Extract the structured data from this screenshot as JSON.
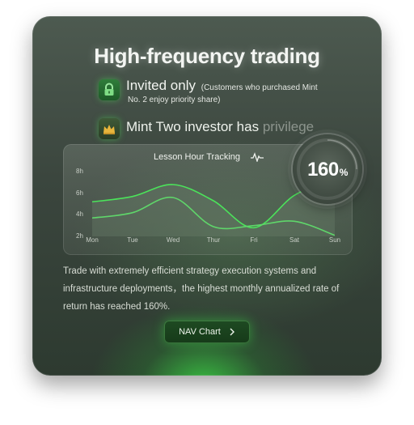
{
  "title": "High-frequency trading",
  "invite": {
    "main": "Invited only",
    "note_line1": "(Customers who purchased Mint",
    "note_line2": "No. 2 enjoy priority share)"
  },
  "privilege": {
    "text_main": "Mint Two investor has ",
    "text_faded": "privilege"
  },
  "chart": {
    "title": "Lesson Hour Tracking",
    "gauge_value": "160",
    "gauge_unit": "%"
  },
  "chart_data": {
    "type": "line",
    "title": "Lesson Hour Tracking",
    "categories": [
      "Mon",
      "Tue",
      "Wed",
      "Thur",
      "Fri",
      "Sat",
      "Sun"
    ],
    "yticks": [
      "8h",
      "6h",
      "4h",
      "2h"
    ],
    "ylim": [
      2,
      8
    ],
    "series": [
      {
        "values": [
          5.2,
          5.7,
          6.8,
          5.3,
          2.8,
          5.8,
          7.4
        ]
      },
      {
        "values": [
          3.7,
          4.2,
          5.6,
          2.9,
          3.0,
          3.4,
          2.1
        ]
      }
    ],
    "grid": false,
    "legend": "none"
  },
  "description": "Trade with extremely efficient strategy execution systems and infrastructure deployments，the highest monthly annualized rate of return has reached 160%.",
  "button": {
    "label": "NAV Chart"
  },
  "colors": {
    "accent": "#37e04a",
    "line_primary": "#4be35a",
    "line_secondary": "#5fd66a"
  }
}
